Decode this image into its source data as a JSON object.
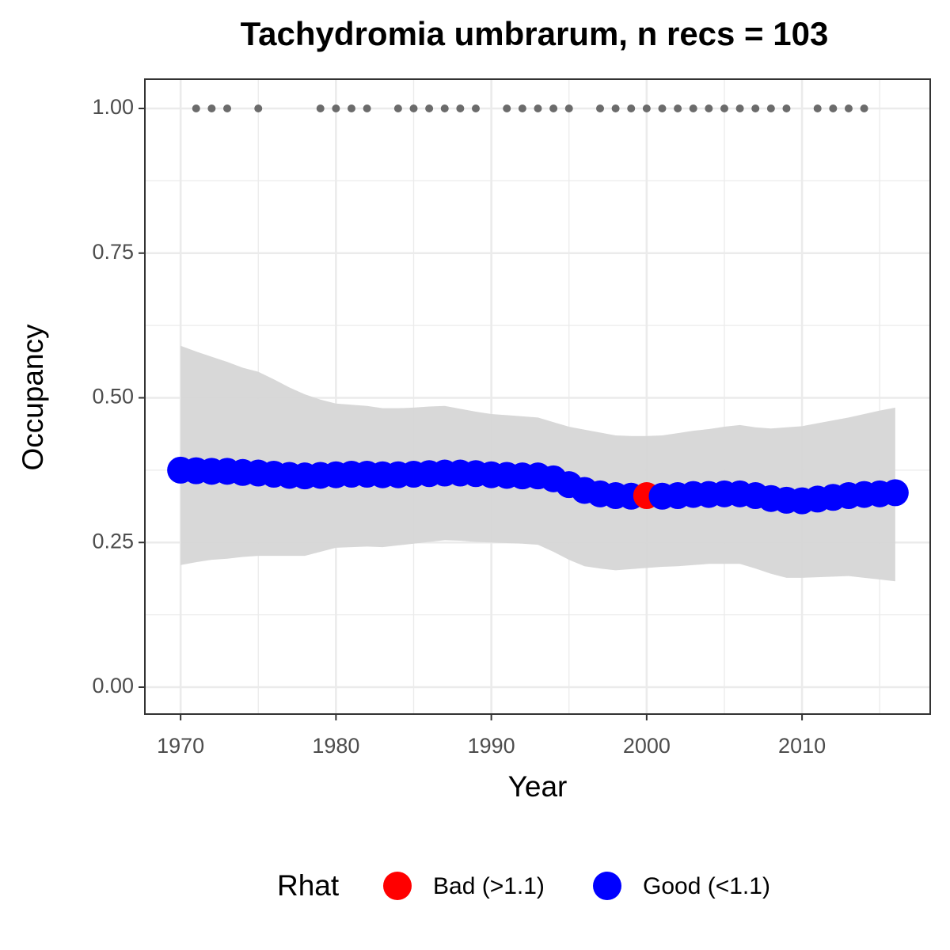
{
  "chart_data": {
    "type": "scatter",
    "title": "Tachydromia umbrarum, n recs = 103",
    "x_label": "Year",
    "y_label": "Occupancy",
    "legend_title": "Rhat",
    "x": [
      1970,
      1971,
      1972,
      1973,
      1974,
      1975,
      1976,
      1977,
      1978,
      1979,
      1980,
      1981,
      1982,
      1983,
      1984,
      1985,
      1986,
      1987,
      1988,
      1989,
      1990,
      1991,
      1992,
      1993,
      1994,
      1995,
      1996,
      1997,
      1998,
      1999,
      2000,
      2001,
      2002,
      2003,
      2004,
      2005,
      2006,
      2007,
      2008,
      2009,
      2010,
      2011,
      2012,
      2013,
      2014,
      2015,
      2016
    ],
    "series": [
      {
        "name": "Bad (>1.1)",
        "color": "#ff0000",
        "values": [
          null,
          null,
          null,
          null,
          null,
          null,
          null,
          null,
          null,
          null,
          null,
          null,
          null,
          null,
          null,
          null,
          null,
          null,
          null,
          null,
          null,
          null,
          null,
          null,
          null,
          null,
          null,
          null,
          null,
          null,
          0.331,
          null,
          null,
          null,
          null,
          null,
          null,
          null,
          null,
          null,
          null,
          null,
          null,
          null,
          null,
          null,
          null
        ]
      },
      {
        "name": "Good (<1.1)",
        "color": "#0000ff",
        "values": [
          0.375,
          0.374,
          0.373,
          0.373,
          0.371,
          0.37,
          0.368,
          0.366,
          0.365,
          0.366,
          0.367,
          0.368,
          0.368,
          0.367,
          0.367,
          0.368,
          0.369,
          0.37,
          0.37,
          0.369,
          0.367,
          0.366,
          0.365,
          0.365,
          0.36,
          0.35,
          0.34,
          0.334,
          0.331,
          0.33,
          null,
          0.33,
          0.331,
          0.333,
          0.333,
          0.334,
          0.334,
          0.331,
          0.326,
          0.323,
          0.322,
          0.325,
          0.328,
          0.331,
          0.333,
          0.334,
          0.336
        ]
      }
    ],
    "ribbon": {
      "color": "#d6d6d6",
      "upper": [
        0.59,
        0.58,
        0.571,
        0.562,
        0.552,
        0.545,
        0.532,
        0.518,
        0.506,
        0.497,
        0.49,
        0.488,
        0.486,
        0.482,
        0.482,
        0.483,
        0.485,
        0.486,
        0.481,
        0.476,
        0.472,
        0.47,
        0.468,
        0.466,
        0.458,
        0.45,
        0.445,
        0.44,
        0.435,
        0.434,
        0.434,
        0.435,
        0.439,
        0.443,
        0.446,
        0.45,
        0.453,
        0.449,
        0.447,
        0.449,
        0.451,
        0.456,
        0.461,
        0.466,
        0.472,
        0.478,
        0.483
      ],
      "lower": [
        0.211,
        0.216,
        0.22,
        0.222,
        0.225,
        0.227,
        0.227,
        0.227,
        0.227,
        0.234,
        0.241,
        0.242,
        0.243,
        0.242,
        0.245,
        0.248,
        0.251,
        0.254,
        0.253,
        0.251,
        0.25,
        0.249,
        0.248,
        0.246,
        0.234,
        0.22,
        0.209,
        0.205,
        0.202,
        0.204,
        0.206,
        0.208,
        0.209,
        0.211,
        0.213,
        0.213,
        0.213,
        0.205,
        0.196,
        0.189,
        0.189,
        0.19,
        0.191,
        0.192,
        0.189,
        0.186,
        0.183
      ]
    },
    "records": {
      "color": "#6b6b6b",
      "x": [
        1971,
        1972,
        1973,
        1975,
        1979,
        1980,
        1981,
        1982,
        1984,
        1985,
        1986,
        1987,
        1988,
        1989,
        1991,
        1992,
        1993,
        1994,
        1995,
        1997,
        1998,
        1999,
        2000,
        2001,
        2002,
        2003,
        2004,
        2005,
        2006,
        2007,
        2008,
        2009,
        2011,
        2012,
        2013,
        2014
      ],
      "values": [
        1,
        1,
        1,
        1,
        1,
        1,
        1,
        1,
        1,
        1,
        1,
        1,
        1,
        1,
        1,
        1,
        1,
        1,
        1,
        1,
        1,
        1,
        1,
        1,
        1,
        1,
        1,
        1,
        1,
        1,
        1,
        1,
        1,
        1,
        1,
        1
      ]
    },
    "xlim": [
      1967.7,
      2018.25
    ],
    "ylim": [
      -0.0465,
      1.0506
    ],
    "xticks": [
      1970,
      1980,
      1990,
      2000,
      2010
    ],
    "yticks": [
      {
        "value": 0,
        "label": "0.00"
      },
      {
        "value": 0.25,
        "label": "0.25"
      },
      {
        "value": 0.5,
        "label": "0.50"
      },
      {
        "value": 0.75,
        "label": "0.75"
      },
      {
        "value": 1,
        "label": "1.00"
      }
    ],
    "grid": true
  }
}
